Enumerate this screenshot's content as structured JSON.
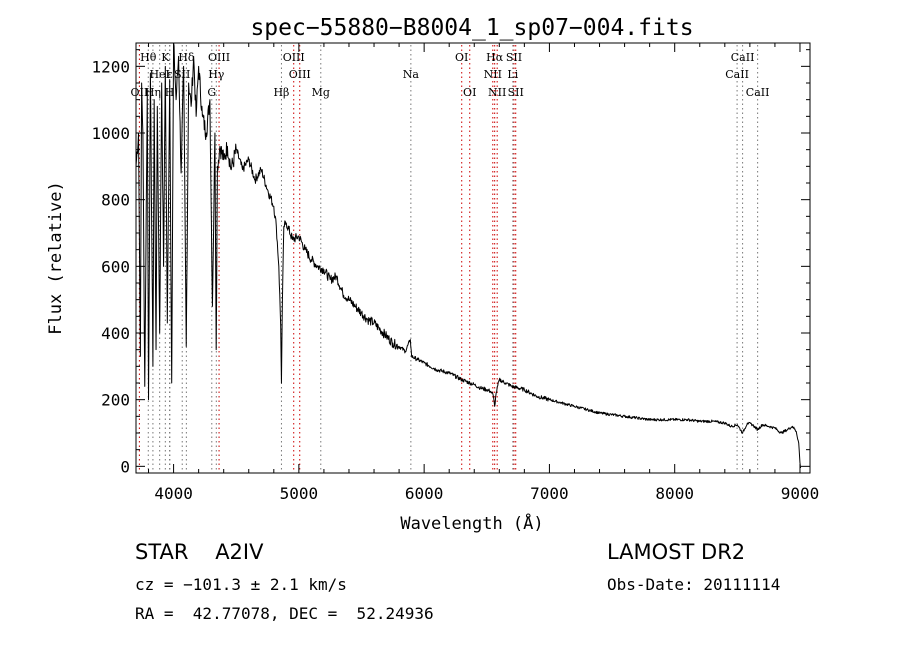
{
  "chart_data": {
    "type": "line",
    "title": "spec−55880−B8004_1_sp07−004.fits",
    "xlabel": "Wavelength (Å)",
    "ylabel": "Flux (relative)",
    "xlim": [
      3700,
      9080
    ],
    "ylim": [
      -20,
      1270
    ],
    "xticks": [
      4000,
      5000,
      6000,
      7000,
      8000,
      9000
    ],
    "yticks": [
      0,
      200,
      400,
      600,
      800,
      1000,
      1200
    ],
    "series": [
      {
        "name": "spectrum",
        "x": [
          3700,
          3720,
          3735,
          3745,
          3755,
          3770,
          3790,
          3800,
          3815,
          3835,
          3845,
          3860,
          3870,
          3889,
          3905,
          3920,
          3934,
          3950,
          3969,
          3985,
          4000,
          4020,
          4040,
          4060,
          4080,
          4101,
          4120,
          4140,
          4160,
          4180,
          4200,
          4230,
          4260,
          4290,
          4310,
          4330,
          4340,
          4350,
          4370,
          4400,
          4430,
          4460,
          4500,
          4550,
          4600,
          4650,
          4700,
          4750,
          4800,
          4820,
          4840,
          4855,
          4861,
          4868,
          4880,
          4900,
          4950,
          5000,
          5050,
          5100,
          5150,
          5200,
          5250,
          5300,
          5350,
          5400,
          5450,
          5500,
          5550,
          5600,
          5650,
          5700,
          5750,
          5800,
          5850,
          5890,
          5900,
          5950,
          6000,
          6100,
          6200,
          6300,
          6400,
          6450,
          6500,
          6530,
          6550,
          6563,
          6575,
          6600,
          6650,
          6700,
          6800,
          6900,
          7000,
          7100,
          7200,
          7300,
          7400,
          7500,
          7600,
          7700,
          7800,
          7900,
          8000,
          8100,
          8200,
          8300,
          8400,
          8450,
          8500,
          8542,
          8580,
          8620,
          8662,
          8700,
          8750,
          8800,
          8850,
          8900,
          8940,
          8970,
          8990,
          9000,
          9005
        ],
        "y": [
          900,
          1000,
          330,
          1150,
          1000,
          240,
          1130,
          200,
          1180,
          300,
          1100,
          350,
          1080,
          400,
          1150,
          600,
          1200,
          430,
          1160,
          250,
          1270,
          1100,
          1230,
          880,
          1200,
          360,
          1150,
          1080,
          1230,
          1050,
          1200,
          1050,
          1000,
          1100,
          480,
          1000,
          350,
          900,
          960,
          920,
          960,
          890,
          950,
          890,
          920,
          860,
          890,
          830,
          780,
          720,
          600,
          420,
          250,
          480,
          720,
          730,
          680,
          690,
          650,
          620,
          600,
          590,
          560,
          570,
          520,
          500,
          480,
          460,
          440,
          430,
          410,
          390,
          370,
          360,
          345,
          380,
          330,
          320,
          310,
          290,
          280,
          260,
          245,
          235,
          230,
          225,
          215,
          180,
          220,
          260,
          250,
          240,
          230,
          210,
          200,
          190,
          180,
          170,
          160,
          155,
          150,
          145,
          140,
          140,
          140,
          140,
          135,
          135,
          130,
          120,
          125,
          100,
          130,
          125,
          110,
          125,
          120,
          115,
          100,
          110,
          120,
          105,
          70,
          10,
          -5
        ]
      }
    ],
    "lines_emission": [
      {
        "name": "OII",
        "wl": 3727,
        "row": 3
      },
      {
        "name": "OIII",
        "wl": 4363,
        "row": 1
      },
      {
        "name": "OIII",
        "wl": 4959,
        "row": 1
      },
      {
        "name": "OIII",
        "wl": 5007,
        "row": 2
      },
      {
        "name": "OI",
        "wl": 6300,
        "row": 1
      },
      {
        "name": "OI",
        "wl": 6364,
        "row": 3
      },
      {
        "name": "NII",
        "wl": 6548,
        "row": 2
      },
      {
        "name": "Hα",
        "wl": 6563,
        "row": 1
      },
      {
        "name": "NII",
        "wl": 6583,
        "row": 3
      },
      {
        "name": "SII",
        "wl": 6717,
        "row": 1
      },
      {
        "name": "SII",
        "wl": 6731,
        "row": 3
      }
    ],
    "lines_absorption": [
      {
        "name": "Hθ",
        "wl": 3798,
        "row": 1
      },
      {
        "name": "Hη",
        "wl": 3835,
        "row": 3
      },
      {
        "name": "HeI",
        "wl": 3889,
        "row": 2
      },
      {
        "name": "K",
        "wl": 3934,
        "row": 1
      },
      {
        "name": "H",
        "wl": 3968,
        "row": 3
      },
      {
        "name": "ε",
        "wl": 3970,
        "row": 2
      },
      {
        "name": "SII",
        "wl": 4069,
        "row": 2
      },
      {
        "name": "Hδ",
        "wl": 4102,
        "row": 1
      },
      {
        "name": "G",
        "wl": 4305,
        "row": 3
      },
      {
        "name": "Hγ",
        "wl": 4341,
        "row": 2
      },
      {
        "name": "Hβ",
        "wl": 4861,
        "row": 3
      },
      {
        "name": "Mg",
        "wl": 5175,
        "row": 3
      },
      {
        "name": "Na",
        "wl": 5894,
        "row": 2
      },
      {
        "name": "Li",
        "wl": 6708,
        "row": 2
      },
      {
        "name": "CaII",
        "wl": 8498,
        "row": 2
      },
      {
        "name": "CaII",
        "wl": 8542,
        "row": 1
      },
      {
        "name": "CaII",
        "wl": 8662,
        "row": 3
      }
    ]
  },
  "info": {
    "object_class": "STAR",
    "subclass": "A2IV",
    "survey": "LAMOST DR2",
    "cz": "cz = −101.3 ± 2.1 km/s",
    "obs_date": "Obs-Date: 20111114",
    "radec": "RA =  42.77078, DEC =  52.24936"
  }
}
